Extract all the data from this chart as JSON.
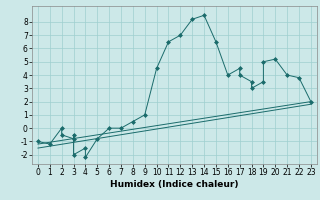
{
  "title": "",
  "xlabel": "Humidex (Indice chaleur)",
  "xlim": [
    -0.5,
    23.5
  ],
  "ylim": [
    -2.7,
    9.2
  ],
  "yticks": [
    -2,
    -1,
    0,
    1,
    2,
    3,
    4,
    5,
    6,
    7,
    8
  ],
  "xticks": [
    0,
    1,
    2,
    3,
    4,
    5,
    6,
    7,
    8,
    9,
    10,
    11,
    12,
    13,
    14,
    15,
    16,
    17,
    18,
    19,
    20,
    21,
    22,
    23
  ],
  "bg_color": "#cce8e8",
  "line_color": "#1a6b6b",
  "grid_color": "#9fcfcf",
  "line1_x": [
    0,
    1,
    2,
    2,
    3,
    3,
    3,
    4,
    4,
    5,
    6,
    7,
    8,
    9,
    10,
    11,
    12,
    13,
    14,
    15,
    16,
    17,
    17,
    18,
    18,
    19,
    19,
    20,
    21,
    22,
    23
  ],
  "line1_y": [
    -1,
    -1.2,
    0.0,
    -0.5,
    -0.8,
    -0.5,
    -2.0,
    -1.5,
    -2.2,
    -0.8,
    0.0,
    0.0,
    0.5,
    1.0,
    4.5,
    6.5,
    7.0,
    8.2,
    8.5,
    6.5,
    4.0,
    4.5,
    4.0,
    3.5,
    3.0,
    3.5,
    5.0,
    5.2,
    4.0,
    3.8,
    2.0
  ],
  "line2_x": [
    0,
    23
  ],
  "line2_y": [
    -1.2,
    2.0
  ],
  "line3_x": [
    0,
    23
  ],
  "line3_y": [
    -1.5,
    1.8
  ],
  "marker_style": "D",
  "marker_size": 2.0,
  "linewidth": 0.7,
  "tick_fontsize": 5.5,
  "xlabel_fontsize": 6.5
}
